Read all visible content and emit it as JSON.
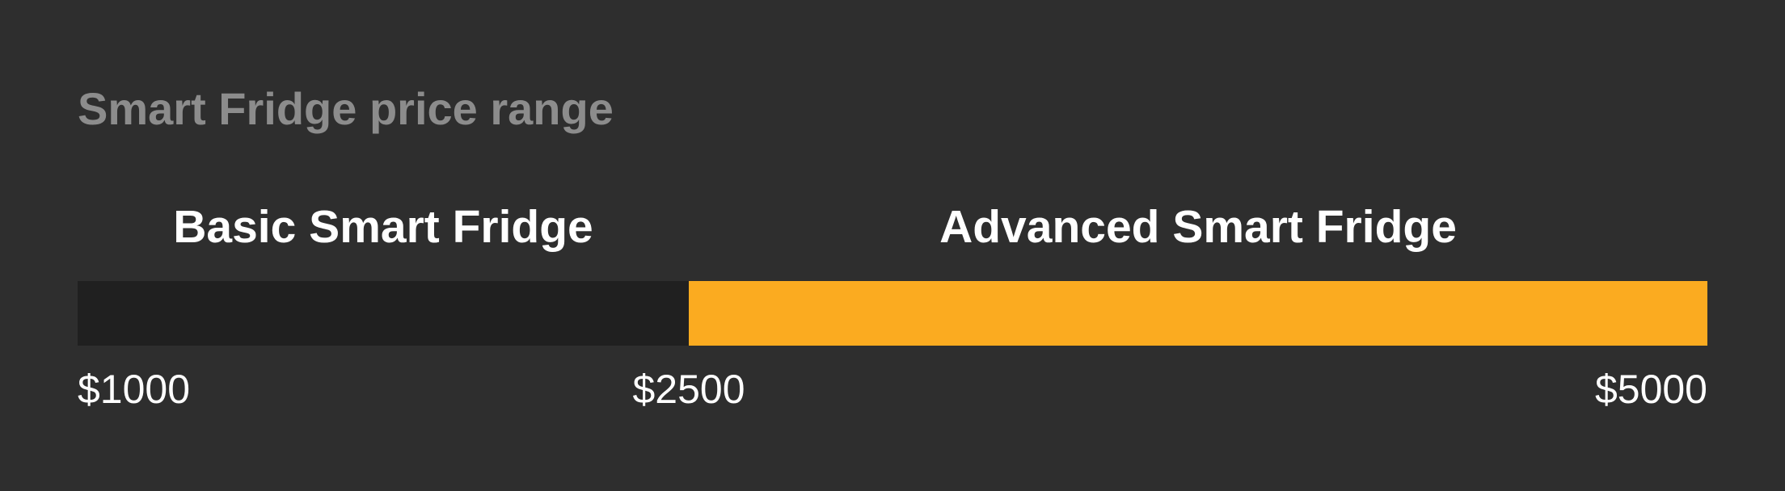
{
  "chart_data": {
    "type": "bar",
    "title": "Smart Fridge price range",
    "xlim": [
      1000,
      5000
    ],
    "segments": [
      {
        "name": "Basic Smart Fridge",
        "start": 1000,
        "end": 2500,
        "color": "#202020"
      },
      {
        "name": "Advanced Smart Fridge",
        "start": 2500,
        "end": 5000,
        "color": "#fbab20"
      }
    ],
    "ticks": [
      {
        "value": 1000,
        "label": "$1000"
      },
      {
        "value": 2500,
        "label": "$2500"
      },
      {
        "value": 5000,
        "label": "$5000"
      }
    ],
    "grid": false
  },
  "colors": {
    "background": "#2e2e2e",
    "title": "#8c8c8c",
    "text": "#ffffff"
  }
}
